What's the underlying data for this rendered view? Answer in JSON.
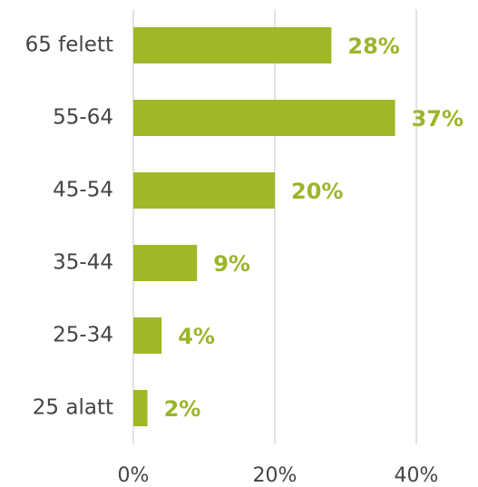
{
  "chart_data": {
    "type": "bar",
    "orientation": "horizontal",
    "categories": [
      "65 felett",
      "55-64",
      "45-54",
      "35-44",
      "25-34",
      "25 alatt"
    ],
    "values": [
      28,
      37,
      20,
      9,
      4,
      2
    ],
    "value_labels": [
      "28%",
      "37%",
      "20%",
      "9%",
      "4%",
      "2%"
    ],
    "color": "#a0b828",
    "xlim": [
      0,
      40
    ],
    "xticks": [
      {
        "value": 0,
        "label": "0%"
      },
      {
        "value": 20,
        "label": "20%"
      },
      {
        "value": 40,
        "label": "40%"
      }
    ],
    "grid": true
  }
}
